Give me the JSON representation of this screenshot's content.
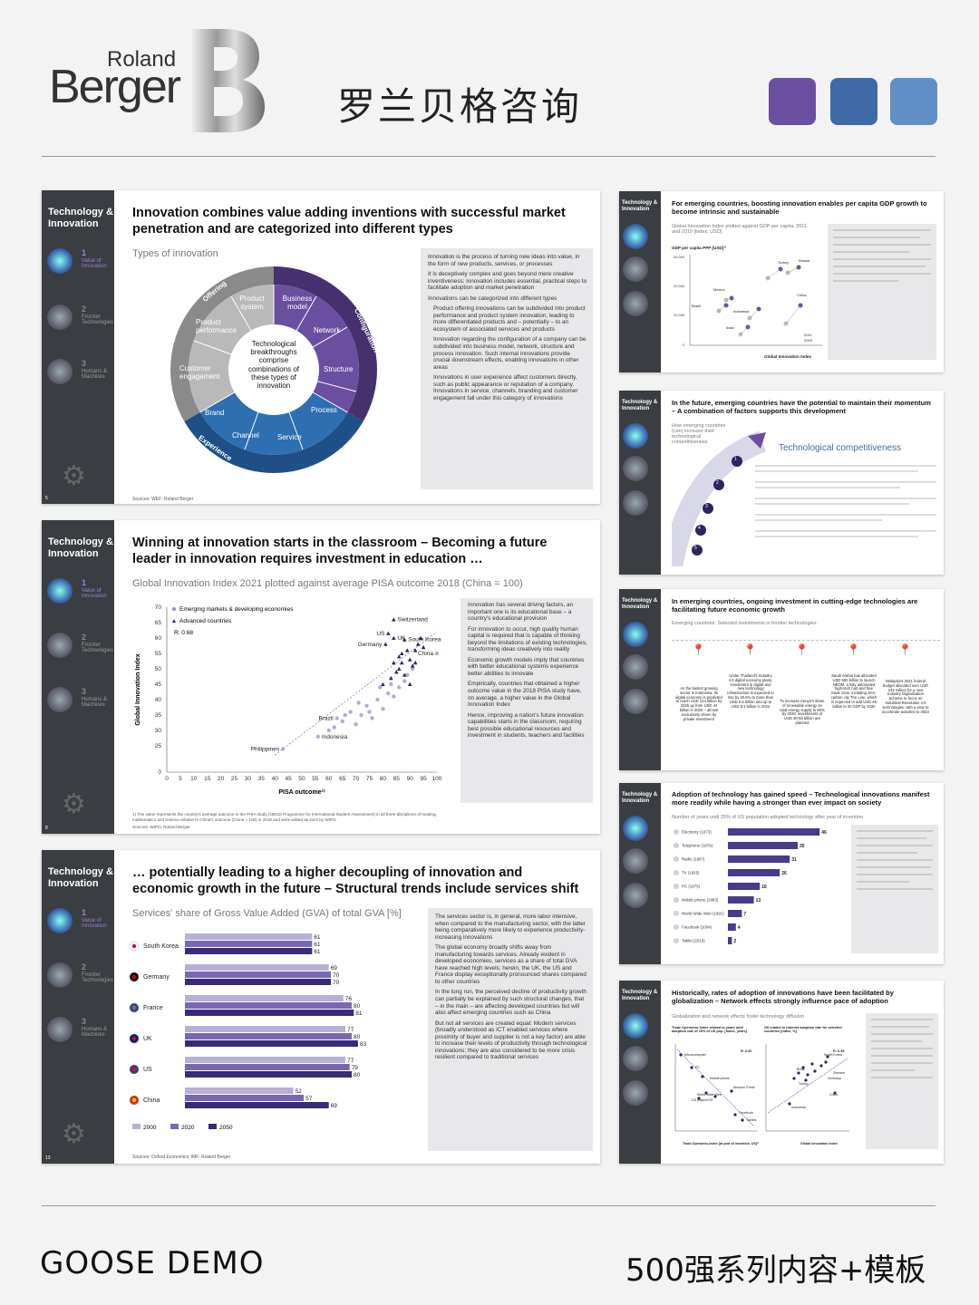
{
  "header": {
    "logo_line1": "Roland",
    "logo_line2": "Berger",
    "title_cn": "罗兰贝格咨询",
    "swatches": [
      "#6a4fa0",
      "#3f6aa8",
      "#5f8fc4"
    ]
  },
  "footer": {
    "left": "GOOSE DEMO",
    "right": "500强系列内容+模板"
  },
  "sidebar": {
    "title": "Technology & Innovation",
    "items": [
      {
        "num": "1",
        "label": "Value of Innovation"
      },
      {
        "num": "2",
        "label": "Frontier Technologies"
      },
      {
        "num": "3",
        "label": "Humans & Machines"
      }
    ]
  },
  "slide1": {
    "page": "5",
    "title": "Innovation combines value adding inventions with successful market penetration and are categorized into different types",
    "subtitle": "Types of innovation",
    "center": "Technological breakthroughs comprise combinations of these types of innovation",
    "ring_labels": [
      "Offering",
      "Configuration",
      "Experience"
    ],
    "segments": [
      "Product system",
      "Business model",
      "Network",
      "Structure",
      "Process",
      "Service",
      "Channel",
      "Brand",
      "Customer engagement",
      "Product performance"
    ],
    "bullets": [
      "Innovation is the process of turning new ideas into value, in the form of new products, services, or processes",
      "It is deceptively complex and goes beyond mere creative inventiveness; innovation includes essential, practical steps to facilitate adoption and market penetration",
      "Innovations can be categorized into different types",
      "Product offering innovations can be subdivided into product performance and product system innovation, leading to more differentiated products and – potentially – to an ecosystem of associated services and products",
      "Innovation regarding the configuration of a company can be subdivided into business model, network, structure and process innovation. Such internal innovations provide crucial downstream effects, enabling innovations in other areas",
      "Innovations in user experience affect customers directly, such as public appearance or reputation of a company. Innovations in service, channels, branding and customer engagement fall under this category of innovations"
    ],
    "source": "Sources: WEF; Roland Berger"
  },
  "slide2": {
    "page": "8",
    "title": "Winning at innovation starts in the classroom – Becoming a future leader in innovation requires investment in education …",
    "subtitle": "Global Innovation Index 2021 plotted against average PISA outcome 2018 (China = 100)",
    "legend": [
      "Emerging markets & developing economies",
      "Advanced countries"
    ],
    "r_value": "R: 0.68",
    "bullets": [
      "Innovation has several driving factors, an important one is its educational base – a country's educational provision",
      "For innovation to occur, high quality human capital is required that is capable of thinking beyond the limitations of existing technologies, transforming ideas creatively into reality",
      "Economic growth models imply that countries with better educational systems experience better abilities to innovate",
      "Empirically, countries that obtained a higher outcome value in the 2018 PISA study have, on average, a higher value in the Global Innovation Index",
      "Hence, improving a nation's future innovation capabilities starts in the classroom, requiring best possible educational resources and investment in students, teachers and facilities"
    ],
    "note": "1) The value represents the country's average outcome in the PISA study (OECD Programme for International Student Assessment) in all three disciplines of reading, mathematics and science relative to China's outcome (China = 100) in 2018 and were edited as such by WIPO",
    "source": "Sources: WIPO; Roland Berger"
  },
  "slide3": {
    "page": "13",
    "title": "… potentially leading to a higher decoupling of innovation and economic growth in the future – Structural trends include services shift",
    "subtitle": "Services' share of Gross Value Added (GVA) of total GVA [%]",
    "bullets": [
      "The services sector is, in general, more labor intensive, when compared to the manufacturing sector, with the latter being comparatively more likely to experience productivity-increasing innovations",
      "The global economy broadly shifts away from manufacturing towards services. Already evident in developed economies, services as a share of total GVA have reached high levels; herein, the UK, the US and France display exceptionally pronounced shares compared to other countries",
      "In the long run, the perceived decline of productivity growth can partially be explained by such structural changes, that – in the main – are affecting developed countries but will also affect emerging countries such as China",
      "But not all services are created equal: Modern services (broadly understood as ICT enabled services where proximity of buyer and supplier is not a key factor) are able to increase their levels of productivity through technological innovations; they are also considered to be more crisis resilient compared to traditional services"
    ],
    "source": "Sources: Oxford Economics; IMF; Roland Berger"
  },
  "slide4": {
    "title": "For emerging countries, boosting innovation enables per capita GDP growth to become intrinsic and sustainable",
    "subtitle": "Global Innovation Index plotted against GDP per capita, 2011 and 2019 [index, USD]",
    "ylabel": "GDP per capita PPP [USD]¹⁾",
    "xlabel": "Global Innovation Index",
    "countries": [
      "Turkey",
      "Russia",
      "Mexico",
      "Brazil",
      "Indonesia",
      "India",
      "China"
    ],
    "legend": [
      "2011",
      "2019"
    ]
  },
  "slide5": {
    "title": "In the future, emerging countries have the potential to maintain their momentum – A combination of factors supports this development",
    "subtitle": "How emerging countries (can) increase their technological competitiveness",
    "label": "Technological competitiveness",
    "steps": [
      "1",
      "2",
      "3",
      "4",
      "5"
    ]
  },
  "slide6": {
    "title": "In emerging countries, ongoing investment in cutting-edge technologies are facilitating future economic growth",
    "subtitle": "Emerging countries: Selected investments in frontier technologies",
    "items": [
      "As the fastest growing sector in Indonesia, its digital economy is predicted to reach USD 124 billion by 2025 up from USD 44 billion in 2020 – almost exclusively driven by private investment",
      "Under Thailand's Industry 4.0 digital economy plans, investment in digital and new technology infrastructure is expected to rise by 20.5% to more than USD 6.6 billion and up to USD 8.4 billion in 2022",
      "To increase Kenya's share of renewable energy on total energy supply to 80% by 2030, investments of USD 30-50 billion are planned",
      "Saudi Arabia has allocated USD 500 billion to launch NEOM, a fully automated high-tech hub and free trade zone, including zero-carbon city The Line, which is expected to add USD 48 billion to its GDP by 2030",
      "Malaysia's 2021 federal budget allocated over USD 242 million for a new Industry Digitalization Scheme to focus on Industrial Revolution 4.0 technologies, with a view to accelerate activities to 2023"
    ]
  },
  "slide7": {
    "title": "Adoption of technology has gained speed – Technological innovations manifest more readily while having a stronger than ever impact on society",
    "subtitle": "Number of years until 25% of US population adopted technology after year of invention"
  },
  "slide8": {
    "title": "Historically, rates of adoption of innovations have been facilitated by globalization – Network effects strongly influence pace of adoption",
    "subtitle": "Globalization and network effects foster technology diffusion",
    "left_title": "Trade Openness Index related to years until adoption rate of 25% of US pop. [index, years]",
    "right_title": "GII related to internet adoption rate for selected countries [index, %]",
    "left_r": "R: 0.60",
    "right_r": "R: 0.39",
    "left_xlabel": "Trade-Openness-Index [at year of invention, US]¹⁾",
    "right_xlabel": "Global Innovation Index",
    "left_points": [
      "Microcomputer",
      "PC",
      "Mobile phone",
      "World Wide Web",
      "CD player",
      "VCR",
      "Amazon Prime",
      "Facebook",
      "Tablets"
    ],
    "right_points": [
      "South Korea",
      "Sweden",
      "Germany",
      "China",
      "Brazil",
      "Turkey",
      "Indonesia"
    ]
  },
  "chart_data": [
    {
      "type": "scatter",
      "xlabel": "PISA outcome¹⁾",
      "ylabel": "Global Innovation Index",
      "xlim": [
        0,
        100
      ],
      "ylim": [
        0,
        70
      ],
      "xticks": [
        0,
        5,
        10,
        15,
        20,
        25,
        30,
        35,
        40,
        45,
        50,
        55,
        60,
        65,
        70,
        75,
        80,
        85,
        90,
        95,
        100
      ],
      "yticks": [
        0,
        25,
        30,
        35,
        40,
        45,
        50,
        55,
        60,
        65,
        70
      ],
      "labels": [
        {
          "name": "Switzerland",
          "x": 84,
          "y": 66
        },
        {
          "name": "US",
          "x": 82,
          "y": 61.5
        },
        {
          "name": "UK",
          "x": 84,
          "y": 60
        },
        {
          "name": "South Korea",
          "x": 88,
          "y": 59.5
        },
        {
          "name": "Germany",
          "x": 81,
          "y": 58
        },
        {
          "name": "China",
          "x": 100,
          "y": 55
        },
        {
          "name": "Philippines",
          "x": 43,
          "y": 24
        },
        {
          "name": "Brazil",
          "x": 63,
          "y": 34
        },
        {
          "name": "Indonesia",
          "x": 56,
          "y": 28
        }
      ],
      "series": [
        {
          "name": "Emerging markets & developing economies",
          "points": [
            [
              43,
              24
            ],
            [
              56,
              28
            ],
            [
              63,
              34
            ],
            [
              60,
              30
            ],
            [
              65,
              33
            ],
            [
              68,
              36
            ],
            [
              70,
              32
            ],
            [
              72,
              35
            ],
            [
              74,
              38
            ],
            [
              76,
              34
            ],
            [
              78,
              40
            ],
            [
              80,
              37
            ],
            [
              82,
              42
            ],
            [
              84,
              41
            ],
            [
              86,
              44
            ],
            [
              88,
              46
            ],
            [
              89,
              48
            ],
            [
              91,
              50
            ],
            [
              62,
              31
            ],
            [
              66,
              35
            ],
            [
              71,
              39
            ],
            [
              75,
              36
            ],
            [
              79,
              44
            ],
            [
              83,
              45
            ],
            [
              100,
              55
            ]
          ]
        },
        {
          "name": "Advanced countries",
          "points": [
            [
              84,
              66
            ],
            [
              82,
              61.5
            ],
            [
              84,
              60
            ],
            [
              88,
              59.5
            ],
            [
              81,
              58
            ],
            [
              86,
              54
            ],
            [
              87,
              52
            ],
            [
              89,
              56
            ],
            [
              90,
              53
            ],
            [
              91,
              51
            ],
            [
              92,
              56
            ],
            [
              85,
              49
            ],
            [
              83,
              47
            ],
            [
              80,
              45
            ],
            [
              93,
              58
            ],
            [
              94,
              60
            ],
            [
              95,
              57
            ],
            [
              92,
              52
            ],
            [
              88,
              48
            ],
            [
              86,
              50
            ],
            [
              90,
              45
            ],
            [
              84,
              52
            ],
            [
              87,
              55
            ]
          ]
        }
      ]
    },
    {
      "type": "bar",
      "orientation": "horizontal",
      "categories": [
        "South Korea",
        "Germany",
        "France",
        "UK",
        "US",
        "China"
      ],
      "series": [
        {
          "name": "2000",
          "values": [
            61,
            69,
            76,
            77,
            77,
            52
          ]
        },
        {
          "name": "2020",
          "values": [
            61,
            70,
            80,
            80,
            79,
            57
          ]
        },
        {
          "name": "2050",
          "values": [
            61,
            70,
            81,
            83,
            80,
            69
          ]
        }
      ],
      "xlim": [
        0,
        100
      ]
    },
    {
      "type": "bar",
      "orientation": "horizontal",
      "categories": [
        "Electricity (1873)",
        "Telephone (1876)",
        "Radio (1897)",
        "TV (1926)",
        "PC (1975)",
        "Mobile phone (1983)",
        "World Wide Web (1991)",
        "Facebook (2004)",
        "Tablet (2010)"
      ],
      "values": [
        46,
        35,
        31,
        26,
        16,
        13,
        7,
        4,
        2
      ],
      "xlim": [
        0,
        50
      ]
    }
  ]
}
